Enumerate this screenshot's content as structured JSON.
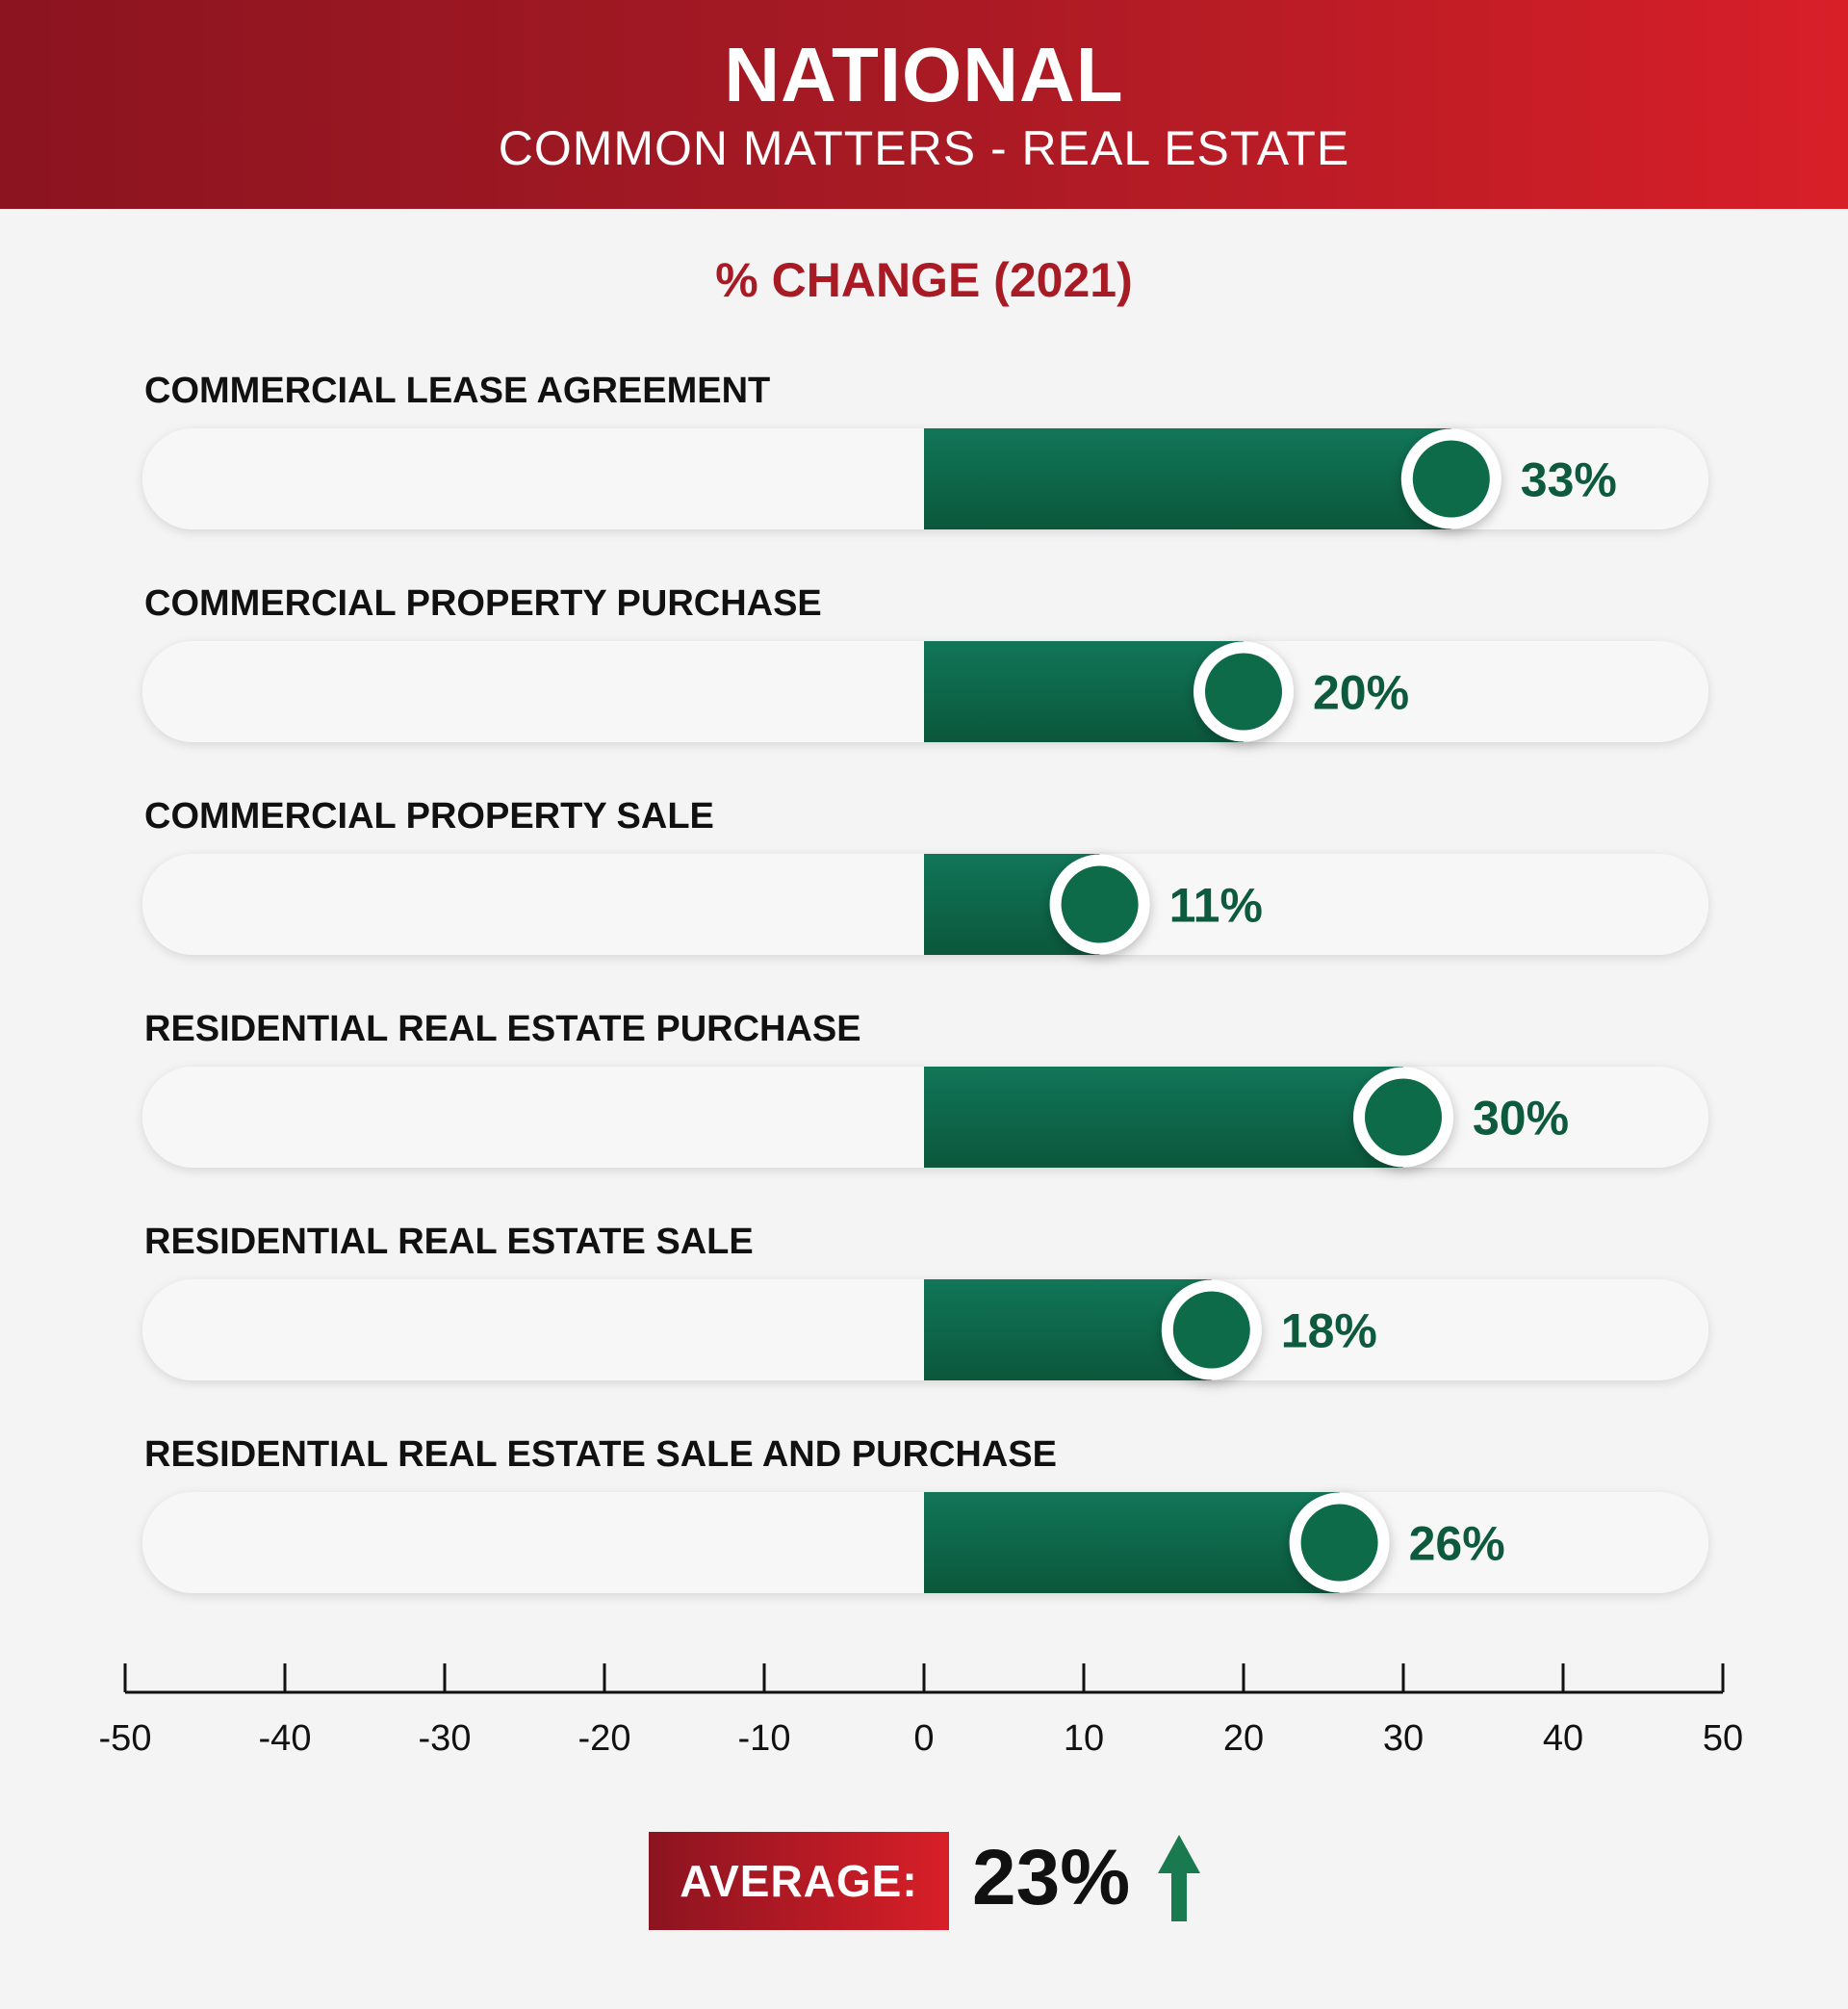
{
  "header": {
    "title": "NATIONAL",
    "subtitle": "COMMON MATTERS - REAL ESTATE"
  },
  "chart_data": {
    "type": "bar",
    "orientation": "horizontal",
    "title": "% CHANGE (2021)",
    "categories": [
      "COMMERCIAL LEASE AGREEMENT",
      "COMMERCIAL PROPERTY PURCHASE",
      "COMMERCIAL PROPERTY SALE",
      "RESIDENTIAL REAL ESTATE PURCHASE",
      "RESIDENTIAL REAL ESTATE SALE",
      "RESIDENTIAL REAL ESTATE SALE AND PURCHASE"
    ],
    "values": [
      33,
      20,
      11,
      30,
      18,
      26
    ],
    "value_labels": [
      "33%",
      "20%",
      "11%",
      "30%",
      "18%",
      "26%"
    ],
    "xlim": [
      -50,
      50
    ],
    "ticks": [
      -50,
      -40,
      -30,
      -20,
      -10,
      0,
      10,
      20,
      30,
      40,
      50
    ],
    "tick_labels": [
      "-50",
      "-40",
      "-30",
      "-20",
      "-10",
      "0",
      "10",
      "20",
      "30",
      "40",
      "50"
    ],
    "grid": false,
    "colors": {
      "bar": "#0d6b4a",
      "bar_dark": "#0a5238",
      "track": "#f7f7f7",
      "label_value": "#0d5a3e",
      "accent": "#a81a24"
    }
  },
  "average": {
    "label": "AVERAGE:",
    "value": "23%",
    "icon": "arrow-up-icon",
    "arrow_color": "#1a7a4f"
  }
}
